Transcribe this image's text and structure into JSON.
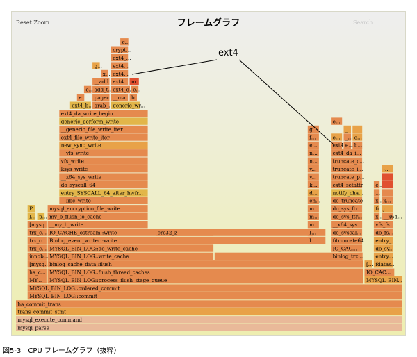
{
  "title": "フレームグラフ",
  "controls": {
    "reset_zoom": "Reset Zoom",
    "search": "Search"
  },
  "caption": "図5-3　CPU フレームグラフ（抜粋）",
  "callout": "ext4",
  "chart_data": {
    "type": "flamegraph",
    "title": "フレームグラフ",
    "palette": {
      "deep": "#e05030",
      "orange": "#e58a4e",
      "amber": "#e8a248",
      "yellow": "#e2b64a",
      "gold": "#d9b138",
      "faded": "#e9b999"
    },
    "frames": [
      {
        "d": 0,
        "s": 0.0,
        "w": 1.0,
        "label": "mysql_parse",
        "c": "faded"
      },
      {
        "d": 1,
        "s": 0.0,
        "w": 1.0,
        "label": "mysql_execute_command",
        "c": "faded"
      },
      {
        "d": 2,
        "s": 0.0,
        "w": 1.0,
        "label": "trans_commit_stmt",
        "c": "amber"
      },
      {
        "d": 3,
        "s": 0.0,
        "w": 1.0,
        "label": "ha_commit_trans",
        "c": "orange"
      },
      {
        "d": 4,
        "s": 0.03,
        "w": 0.97,
        "label": "MYSQL_BIN_LOG::commit",
        "c": "orange"
      },
      {
        "d": 5,
        "s": 0.03,
        "w": 0.97,
        "label": "MYSQL_BIN_LOG::ordered_commit",
        "c": "orange"
      },
      {
        "d": 6,
        "s": 0.03,
        "w": 0.05,
        "label": "MY...",
        "c": "orange"
      },
      {
        "d": 6,
        "s": 0.082,
        "w": 0.818,
        "label": "MYSQL_BIN_LOG::process_flush_stage_queue",
        "c": "orange"
      },
      {
        "d": 6,
        "s": 0.902,
        "w": 0.098,
        "label": "MYSQL_BIN...",
        "c": "amber"
      },
      {
        "d": 7,
        "s": 0.03,
        "w": 0.05,
        "label": "ha_c...",
        "c": "orange"
      },
      {
        "d": 7,
        "s": 0.082,
        "w": 0.818,
        "label": "MYSQL_BIN_LOG::flush_thread_caches",
        "c": "orange"
      },
      {
        "d": 7,
        "s": 0.902,
        "w": 0.078,
        "label": "IO_CAC...",
        "c": "orange"
      },
      {
        "d": 8,
        "s": 0.03,
        "w": 0.05,
        "label": "[mysq...",
        "c": "orange"
      },
      {
        "d": 8,
        "s": 0.082,
        "w": 0.818,
        "label": "binlog_cache_data::flush",
        "c": "orange"
      },
      {
        "d": 8,
        "s": 0.902,
        "w": 0.02,
        "label": "[...",
        "c": "amber"
      },
      {
        "d": 8,
        "s": 0.926,
        "w": 0.05,
        "label": "fdatas...",
        "c": "amber"
      },
      {
        "d": 9,
        "s": 0.03,
        "w": 0.05,
        "label": "innob...",
        "c": "orange"
      },
      {
        "d": 9,
        "s": 0.082,
        "w": 0.43,
        "label": "MYSQL_BIN_LOG::write_cache",
        "c": "orange"
      },
      {
        "d": 9,
        "s": 0.514,
        "w": 0.384,
        "label": "",
        "c": "orange"
      },
      {
        "d": 9,
        "s": 0.815,
        "w": 0.082,
        "label": "binlog_trx...",
        "c": "orange"
      },
      {
        "d": 9,
        "s": 0.926,
        "w": 0.05,
        "label": "entry...",
        "c": "amber"
      },
      {
        "d": 10,
        "s": 0.03,
        "w": 0.05,
        "label": "trx_c...",
        "c": "orange"
      },
      {
        "d": 10,
        "s": 0.082,
        "w": 0.43,
        "label": "MYSQL_BIN_LOG::do_write_cache",
        "c": "orange"
      },
      {
        "d": 10,
        "s": 0.815,
        "w": 0.082,
        "label": "IO_CAC...",
        "c": "orange"
      },
      {
        "d": 10,
        "s": 0.926,
        "w": 0.05,
        "label": "do_sy...",
        "c": "amber"
      },
      {
        "d": 11,
        "s": 0.03,
        "w": 0.05,
        "label": "trx_c...",
        "c": "orange"
      },
      {
        "d": 11,
        "s": 0.082,
        "w": 0.72,
        "label": "Binlog_event_writer::write",
        "c": "orange"
      },
      {
        "d": 11,
        "s": 0.755,
        "w": 0.015,
        "label": "I...",
        "c": "orange"
      },
      {
        "d": 11,
        "s": 0.815,
        "w": 0.082,
        "label": "fitruncate64",
        "c": "orange"
      },
      {
        "d": 11,
        "s": 0.926,
        "w": 0.05,
        "label": "entry_...",
        "c": "amber"
      },
      {
        "d": 12,
        "s": 0.03,
        "w": 0.05,
        "label": "trx_c...",
        "c": "orange"
      },
      {
        "d": 12,
        "s": 0.082,
        "w": 0.72,
        "label": "IO_CACHE_ostream::write",
        "c": "orange"
      },
      {
        "d": 12,
        "s": 0.362,
        "w": 0.15,
        "label": "crc32_z",
        "c": "orange"
      },
      {
        "d": 12,
        "s": 0.755,
        "w": 0.015,
        "label": "I...",
        "c": "orange"
      },
      {
        "d": 12,
        "s": 0.815,
        "w": 0.082,
        "label": "do_syscal...",
        "c": "orange"
      },
      {
        "d": 12,
        "s": 0.926,
        "w": 0.05,
        "label": "do_fs...",
        "c": "orange"
      },
      {
        "d": 13,
        "s": 0.03,
        "w": 0.05,
        "label": "[mysq...",
        "c": "orange"
      },
      {
        "d": 13,
        "s": 0.082,
        "w": 0.26,
        "label": "__my_b_write",
        "c": "orange"
      },
      {
        "d": 13,
        "s": 0.755,
        "w": 0.03,
        "label": "m...",
        "c": "orange"
      },
      {
        "d": 13,
        "s": 0.815,
        "w": 0.082,
        "label": "__x64_sys...",
        "c": "orange"
      },
      {
        "d": 13,
        "s": 0.926,
        "w": 0.05,
        "label": "vfs_fs...",
        "c": "orange"
      },
      {
        "d": 14,
        "s": 0.03,
        "w": 0.02,
        "label": "l...",
        "c": "yellow"
      },
      {
        "d": 14,
        "s": 0.055,
        "w": 0.02,
        "label": "p...",
        "c": "yellow"
      },
      {
        "d": 14,
        "s": 0.082,
        "w": 0.26,
        "label": "my_b_flush_io_cache",
        "c": "orange"
      },
      {
        "d": 14,
        "s": 0.755,
        "w": 0.03,
        "label": "m...",
        "c": "orange"
      },
      {
        "d": 14,
        "s": 0.815,
        "w": 0.082,
        "label": "do_sys_ftr...",
        "c": "orange"
      },
      {
        "d": 14,
        "s": 0.926,
        "w": 0.016,
        "label": "x...",
        "c": "orange"
      },
      {
        "d": 14,
        "s": 0.946,
        "w": 0.03,
        "label": "__x64...",
        "c": "orange"
      },
      {
        "d": 15,
        "s": 0.03,
        "w": 0.02,
        "label": "P...",
        "c": "yellow"
      },
      {
        "d": 15,
        "s": 0.082,
        "w": 0.26,
        "label": "mysql_encryption_file_write",
        "c": "orange"
      },
      {
        "d": 15,
        "s": 0.755,
        "w": 0.03,
        "label": "m...",
        "c": "orange"
      },
      {
        "d": 15,
        "s": 0.815,
        "w": 0.082,
        "label": "do_sys_ftr...",
        "c": "orange"
      },
      {
        "d": 15,
        "s": 0.926,
        "w": 0.016,
        "label": "fi...",
        "c": "amber"
      },
      {
        "d": 15,
        "s": 0.946,
        "w": 0.03,
        "label": "j...",
        "c": "amber"
      },
      {
        "d": 16,
        "s": 0.112,
        "w": 0.23,
        "label": "__libc_write",
        "c": "orange"
      },
      {
        "d": 16,
        "s": 0.755,
        "w": 0.03,
        "label": "en...",
        "c": "orange"
      },
      {
        "d": 16,
        "s": 0.815,
        "w": 0.082,
        "label": "do_truncate",
        "c": "orange"
      },
      {
        "d": 16,
        "s": 0.926,
        "w": 0.016,
        "label": "x...",
        "c": "orange"
      },
      {
        "d": 16,
        "s": 0.946,
        "w": 0.03,
        "label": "x...",
        "c": "orange"
      },
      {
        "d": 17,
        "s": 0.112,
        "w": 0.23,
        "label": "entry_SYSCALL_64_after_hwfr...",
        "c": "yellow"
      },
      {
        "d": 17,
        "s": 0.755,
        "w": 0.03,
        "label": "d...",
        "c": "amber"
      },
      {
        "d": 17,
        "s": 0.815,
        "w": 0.082,
        "label": "notify_cha...",
        "c": "yellow"
      },
      {
        "d": 17,
        "s": 0.926,
        "w": 0.016,
        "label": "...",
        "c": "orange"
      },
      {
        "d": 17,
        "s": 0.946,
        "w": 0.03,
        "label": "",
        "c": "orange"
      },
      {
        "d": 18,
        "s": 0.112,
        "w": 0.23,
        "label": "do_syscall_64",
        "c": "orange"
      },
      {
        "d": 18,
        "s": 0.755,
        "w": 0.03,
        "label": "k...",
        "c": "orange"
      },
      {
        "d": 18,
        "s": 0.815,
        "w": 0.082,
        "label": "ext4_setattr",
        "c": "orange"
      },
      {
        "d": 18,
        "s": 0.926,
        "w": 0.016,
        "label": "e...",
        "c": "orange"
      },
      {
        "d": 18,
        "s": 0.946,
        "w": 0.03,
        "label": "",
        "c": "deep"
      },
      {
        "d": 19,
        "s": 0.112,
        "w": 0.23,
        "label": "__x64_sys_write",
        "c": "orange"
      },
      {
        "d": 19,
        "s": 0.755,
        "w": 0.03,
        "label": "v...",
        "c": "orange"
      },
      {
        "d": 19,
        "s": 0.815,
        "w": 0.082,
        "label": "truncate_p...",
        "c": "orange"
      },
      {
        "d": 19,
        "s": 0.946,
        "w": 0.03,
        "label": "",
        "c": "deep"
      },
      {
        "d": 20,
        "s": 0.112,
        "w": 0.23,
        "label": "ksys_write",
        "c": "orange"
      },
      {
        "d": 20,
        "s": 0.755,
        "w": 0.03,
        "label": "v...",
        "c": "orange"
      },
      {
        "d": 20,
        "s": 0.815,
        "w": 0.082,
        "label": "truncate_i...",
        "c": "orange"
      },
      {
        "d": 20,
        "s": 0.946,
        "w": 0.03,
        "label": "-...",
        "c": "amber"
      },
      {
        "d": 21,
        "s": 0.112,
        "w": 0.23,
        "label": "vfs_write",
        "c": "orange"
      },
      {
        "d": 21,
        "s": 0.755,
        "w": 0.03,
        "label": "n...",
        "c": "orange"
      },
      {
        "d": 21,
        "s": 0.815,
        "w": 0.082,
        "label": "truncate_c...",
        "c": "orange"
      },
      {
        "d": 22,
        "s": 0.112,
        "w": 0.23,
        "label": "__vfs_write",
        "c": "orange"
      },
      {
        "d": 22,
        "s": 0.755,
        "w": 0.03,
        "label": "n...",
        "c": "orange"
      },
      {
        "d": 22,
        "s": 0.815,
        "w": 0.082,
        "label": "ext4_da_i...",
        "c": "orange"
      },
      {
        "d": 23,
        "s": 0.112,
        "w": 0.23,
        "label": "new_sync_write",
        "c": "amber"
      },
      {
        "d": 23,
        "s": 0.755,
        "w": 0.03,
        "label": "e...",
        "c": "orange"
      },
      {
        "d": 23,
        "s": 0.815,
        "w": 0.03,
        "label": "ext4_e...",
        "c": "orange"
      },
      {
        "d": 23,
        "s": 0.848,
        "w": 0.02,
        "label": "e...",
        "c": "orange"
      },
      {
        "d": 23,
        "s": 0.871,
        "w": 0.026,
        "label": "b...",
        "c": "orange"
      },
      {
        "d": 24,
        "s": 0.112,
        "w": 0.23,
        "label": "ext4_file_write_iter",
        "c": "orange"
      },
      {
        "d": 24,
        "s": 0.755,
        "w": 0.03,
        "label": "f...",
        "c": "orange"
      },
      {
        "d": 24,
        "s": 0.815,
        "w": 0.03,
        "label": "e...",
        "c": "amber"
      },
      {
        "d": 24,
        "s": 0.848,
        "w": 0.02,
        "label": "_...",
        "c": "orange"
      },
      {
        "d": 24,
        "s": 0.871,
        "w": 0.026,
        "label": "e...",
        "c": "amber"
      },
      {
        "d": 25,
        "s": 0.112,
        "w": 0.23,
        "label": "__generic_file_write_iter",
        "c": "orange"
      },
      {
        "d": 25,
        "s": 0.755,
        "w": 0.03,
        "label": "g...",
        "c": "orange"
      },
      {
        "d": 25,
        "s": 0.848,
        "w": 0.02,
        "label": "_...",
        "c": "amber"
      },
      {
        "d": 25,
        "s": 0.871,
        "w": 0.026,
        "label": "...",
        "c": "amber"
      },
      {
        "d": 26,
        "s": 0.112,
        "w": 0.23,
        "label": "generic_perform_write",
        "c": "yellow"
      },
      {
        "d": 26,
        "s": 0.815,
        "w": 0.03,
        "label": "e...",
        "c": "orange"
      },
      {
        "d": 27,
        "s": 0.112,
        "w": 0.23,
        "label": "ext4_da_write_begin",
        "c": "orange"
      },
      {
        "d": 28,
        "s": 0.14,
        "w": 0.055,
        "label": "ext4_b...",
        "c": "yellow"
      },
      {
        "d": 28,
        "s": 0.198,
        "w": 0.045,
        "label": "grab_...",
        "c": "orange"
      },
      {
        "d": 28,
        "s": 0.246,
        "w": 0.075,
        "label": "generic_wr...",
        "c": "yellow"
      },
      {
        "d": 29,
        "s": 0.158,
        "w": 0.02,
        "label": "e...",
        "c": "orange"
      },
      {
        "d": 29,
        "s": 0.198,
        "w": 0.045,
        "label": "pagec...",
        "c": "orange"
      },
      {
        "d": 29,
        "s": 0.246,
        "w": 0.045,
        "label": "__ma...",
        "c": "orange"
      },
      {
        "d": 29,
        "s": 0.294,
        "w": 0.02,
        "label": "b...",
        "c": "orange"
      },
      {
        "d": 30,
        "s": 0.176,
        "w": 0.02,
        "label": "e...",
        "c": "orange"
      },
      {
        "d": 30,
        "s": 0.198,
        "w": 0.045,
        "label": "add_t...",
        "c": "orange"
      },
      {
        "d": 30,
        "s": 0.246,
        "w": 0.05,
        "label": "ext4_d...",
        "c": "orange"
      },
      {
        "d": 30,
        "s": 0.298,
        "w": 0.02,
        "label": "e...",
        "c": "orange"
      },
      {
        "d": 31,
        "s": 0.198,
        "w": 0.045,
        "label": "__add...",
        "c": "orange"
      },
      {
        "d": 31,
        "s": 0.246,
        "w": 0.045,
        "label": "ext4...",
        "c": "orange"
      },
      {
        "d": 31,
        "s": 0.294,
        "w": 0.025,
        "label": "m...",
        "c": "deep"
      },
      {
        "d": 32,
        "s": 0.22,
        "w": 0.02,
        "label": "x...",
        "c": "orange"
      },
      {
        "d": 32,
        "s": 0.246,
        "w": 0.045,
        "label": "ext4...",
        "c": "orange"
      },
      {
        "d": 33,
        "s": 0.198,
        "w": 0.02,
        "label": "g...",
        "c": "amber"
      },
      {
        "d": 33,
        "s": 0.246,
        "w": 0.045,
        "label": "ext4...",
        "c": "orange"
      },
      {
        "d": 34,
        "s": 0.246,
        "w": 0.045,
        "label": "ext4_...",
        "c": "orange"
      },
      {
        "d": 35,
        "s": 0.246,
        "w": 0.045,
        "label": "crypt...",
        "c": "orange"
      },
      {
        "d": 36,
        "s": 0.27,
        "w": 0.022,
        "label": "c...",
        "c": "orange"
      }
    ]
  }
}
